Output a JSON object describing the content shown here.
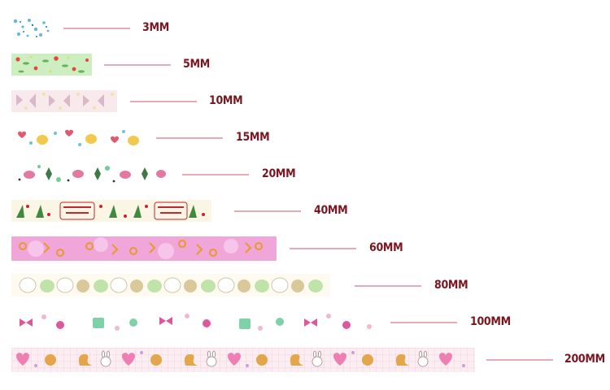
{
  "tapes": [
    {
      "id": "t3",
      "label": "3MM",
      "colors": {
        "bg": "#ffffff",
        "accent": "#5fb9d8",
        "alt": "#1f7fb0"
      }
    },
    {
      "id": "t5",
      "label": "5MM",
      "colors": {
        "bg": "#cdeec0",
        "accent": "#e24a3c",
        "alt": "#6ab05a"
      }
    },
    {
      "id": "t10",
      "label": "10MM",
      "colors": {
        "bg": "#f7e9ec",
        "accent": "#d9b8c8",
        "alt": "#f1e3a8"
      }
    },
    {
      "id": "t15",
      "label": "15MM",
      "colors": {
        "bg": "#ffffff",
        "accent": "#e2586f",
        "alt": "#f2c94c"
      }
    },
    {
      "id": "t20",
      "label": "20MM",
      "colors": {
        "bg": "#ffffff",
        "accent": "#e27aa0",
        "alt": "#3f7a45"
      }
    },
    {
      "id": "t40",
      "label": "40MM",
      "colors": {
        "bg": "#fbf5e6",
        "accent": "#c2272d",
        "alt": "#3f8a3f"
      }
    },
    {
      "id": "t60",
      "label": "60MM",
      "colors": {
        "bg": "#f0a6d8",
        "accent": "#e89a2c",
        "alt": "#f7c5ea"
      }
    },
    {
      "id": "t80",
      "label": "80MM",
      "colors": {
        "bg": "#fffaf0",
        "accent": "#d9c89a",
        "alt": "#bfe3a8"
      }
    },
    {
      "id": "t100",
      "label": "100MM",
      "colors": {
        "bg": "#ffffff",
        "accent": "#e0569c",
        "alt": "#7fd1a8"
      }
    },
    {
      "id": "t200",
      "label": "200MM",
      "colors": {
        "bg": "#fbeef3",
        "accent": "#ef7fb3",
        "alt": "#e3a64a"
      }
    }
  ]
}
